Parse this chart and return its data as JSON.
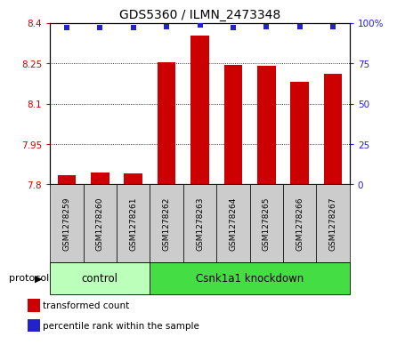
{
  "title": "GDS5360 / ILMN_2473348",
  "samples": [
    "GSM1278259",
    "GSM1278260",
    "GSM1278261",
    "GSM1278262",
    "GSM1278263",
    "GSM1278264",
    "GSM1278265",
    "GSM1278266",
    "GSM1278267"
  ],
  "red_values": [
    7.835,
    7.845,
    7.84,
    8.255,
    8.355,
    8.245,
    8.24,
    8.18,
    8.21
  ],
  "blue_values": [
    97,
    97,
    97,
    98,
    99,
    97,
    98,
    98,
    98
  ],
  "ylim_left": [
    7.8,
    8.4
  ],
  "ylim_right": [
    0,
    100
  ],
  "yticks_left": [
    7.8,
    7.95,
    8.1,
    8.25,
    8.4
  ],
  "yticks_right": [
    0,
    25,
    50,
    75,
    100
  ],
  "ytick_labels_left": [
    "7.8",
    "7.95",
    "8.1",
    "8.25",
    "8.4"
  ],
  "ytick_labels_right": [
    "0",
    "25",
    "50",
    "75",
    "100%"
  ],
  "control_count": 3,
  "knockdown_count": 6,
  "control_label": "control",
  "knockdown_label": "Csnk1a1 knockdown",
  "protocol_label": "protocol",
  "legend_red": "transformed count",
  "legend_blue": "percentile rank within the sample",
  "bar_color": "#CC0000",
  "dot_color": "#2222CC",
  "control_bg": "#bbffbb",
  "knockdown_bg": "#44dd44",
  "label_bg": "#cccccc",
  "bar_width": 0.55,
  "bar_base": 7.8
}
